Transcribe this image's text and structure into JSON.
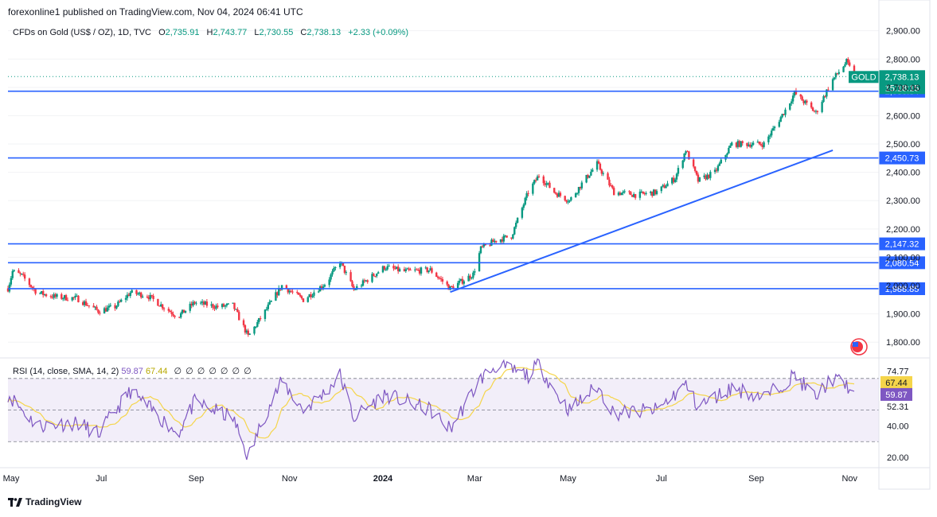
{
  "header": {
    "publisher": "forexonline1 published on TradingView.com, Nov 04, 2024 06:41 UTC"
  },
  "legend": {
    "symbol": "CFDs on Gold (US$ / OZ), 1D, TVC",
    "open_label": "O",
    "open": "2,735.91",
    "high_label": "H",
    "high": "2,743.77",
    "low_label": "L",
    "low": "2,730.55",
    "close_label": "C",
    "close": "2,738.13",
    "change": "+2.33 (+0.09%)"
  },
  "rsi_legend": {
    "label": "RSI (14, close, SMA, 14, 2)",
    "rsi": "59.87",
    "sma": "67.44",
    "na": [
      "∅",
      "∅",
      "∅",
      "∅",
      "∅",
      "∅",
      "∅"
    ]
  },
  "footer": {
    "brand": "TradingView"
  },
  "colors": {
    "up": "#089981",
    "down": "#f23645",
    "level": "#2962ff",
    "rsi": "#7e57c2",
    "rsi_ma": "#f5d54a"
  },
  "chart_data": {
    "type": "candlestick",
    "symbol": "GOLD",
    "interval": "1D",
    "price_axis": {
      "ticks": [
        "2,900.00",
        "2,800.00",
        "2,700.00",
        "2,600.00",
        "2,500.00",
        "2,400.00",
        "2,300.00",
        "2,200.00",
        "2,100.00",
        "2,000.00",
        "1,900.00",
        "1,800.00"
      ],
      "ylim": [
        1750,
        2930
      ]
    },
    "time_axis": {
      "labels": [
        "May",
        "Jul",
        "Sep",
        "Nov",
        "2024",
        "Mar",
        "May",
        "Jul",
        "Sep",
        "Nov"
      ]
    },
    "price_path": [
      [
        "2023-05-01",
        1990
      ],
      [
        "2023-05-04",
        2050
      ],
      [
        "2023-05-10",
        2035
      ],
      [
        "2023-05-20",
        1975
      ],
      [
        "2023-06-01",
        1960
      ],
      [
        "2023-06-15",
        1955
      ],
      [
        "2023-06-29",
        1910
      ],
      [
        "2023-07-10",
        1925
      ],
      [
        "2023-07-20",
        1975
      ],
      [
        "2023-07-31",
        1965
      ],
      [
        "2023-08-20",
        1890
      ],
      [
        "2023-08-31",
        1940
      ],
      [
        "2023-09-15",
        1925
      ],
      [
        "2023-09-25",
        1930
      ],
      [
        "2023-10-05",
        1820
      ],
      [
        "2023-10-15",
        1900
      ],
      [
        "2023-10-27",
        2000
      ],
      [
        "2023-11-10",
        1950
      ],
      [
        "2023-11-25",
        2010
      ],
      [
        "2023-12-04",
        2085
      ],
      [
        "2023-12-13",
        1985
      ],
      [
        "2024-01-02",
        2065
      ],
      [
        "2024-01-15",
        2050
      ],
      [
        "2024-02-01",
        2055
      ],
      [
        "2024-02-14",
        1990
      ],
      [
        "2024-02-29",
        2040
      ],
      [
        "2024-03-05",
        2130
      ],
      [
        "2024-03-15",
        2160
      ],
      [
        "2024-03-25",
        2175
      ],
      [
        "2024-04-05",
        2330
      ],
      [
        "2024-04-12",
        2390
      ],
      [
        "2024-04-22",
        2330
      ],
      [
        "2024-05-02",
        2300
      ],
      [
        "2024-05-10",
        2360
      ],
      [
        "2024-05-20",
        2430
      ],
      [
        "2024-05-31",
        2330
      ],
      [
        "2024-06-15",
        2320
      ],
      [
        "2024-06-28",
        2330
      ],
      [
        "2024-07-10",
        2380
      ],
      [
        "2024-07-17",
        2480
      ],
      [
        "2024-07-25",
        2370
      ],
      [
        "2024-08-05",
        2400
      ],
      [
        "2024-08-16",
        2500
      ],
      [
        "2024-09-06",
        2500
      ],
      [
        "2024-09-20",
        2620
      ],
      [
        "2024-09-26",
        2680
      ],
      [
        "2024-10-10",
        2610
      ],
      [
        "2024-10-20",
        2720
      ],
      [
        "2024-10-30",
        2790
      ],
      [
        "2024-11-04",
        2738.13
      ]
    ],
    "horizontal_levels": [
      {
        "price": 2686.34,
        "label": "2,686.34"
      },
      {
        "price": 2450.73,
        "label": "2,450.73"
      },
      {
        "price": 2147.32,
        "label": "2,147.32"
      },
      {
        "price": 2080.54,
        "label": "2,080.54"
      },
      {
        "price": 1988.85,
        "label": "1,988.85"
      }
    ],
    "trendline": {
      "start": [
        "2024-02-14",
        1977
      ],
      "end": [
        "2024-10-21",
        2478
      ]
    },
    "last_price": {
      "name": "GOLD",
      "value": "2,738.13",
      "countdown": "15:18:15"
    },
    "rsi": {
      "params": "RSI (14, close, SMA, 14, 2)",
      "ticks": [
        "74.77",
        "52.31",
        "40.00",
        "20.00"
      ],
      "bands": [
        70,
        30
      ],
      "ylim": [
        15,
        82
      ],
      "current": {
        "rsi": "59.87",
        "rsi_ma": "67.44"
      },
      "rsi_path": [
        [
          "2023-05-01",
          60
        ],
        [
          "2023-05-20",
          40
        ],
        [
          "2023-06-15",
          42
        ],
        [
          "2023-06-29",
          35
        ],
        [
          "2023-07-20",
          62
        ],
        [
          "2023-08-20",
          35
        ],
        [
          "2023-08-31",
          55
        ],
        [
          "2023-09-25",
          45
        ],
        [
          "2023-10-05",
          20
        ],
        [
          "2023-10-15",
          45
        ],
        [
          "2023-10-27",
          68
        ],
        [
          "2023-11-10",
          50
        ],
        [
          "2023-11-25",
          62
        ],
        [
          "2023-12-04",
          72
        ],
        [
          "2023-12-13",
          45
        ],
        [
          "2024-01-02",
          60
        ],
        [
          "2024-02-01",
          50
        ],
        [
          "2024-02-14",
          38
        ],
        [
          "2024-03-05",
          70
        ],
        [
          "2024-03-15",
          78
        ],
        [
          "2024-04-05",
          72
        ],
        [
          "2024-04-12",
          79
        ],
        [
          "2024-04-22",
          62
        ],
        [
          "2024-05-02",
          50
        ],
        [
          "2024-05-20",
          65
        ],
        [
          "2024-05-31",
          48
        ],
        [
          "2024-06-28",
          50
        ],
        [
          "2024-07-17",
          66
        ],
        [
          "2024-07-25",
          52
        ],
        [
          "2024-08-16",
          64
        ],
        [
          "2024-09-06",
          58
        ],
        [
          "2024-09-26",
          72
        ],
        [
          "2024-10-10",
          58
        ],
        [
          "2024-10-20",
          70
        ],
        [
          "2024-10-30",
          66
        ],
        [
          "2024-11-04",
          59.87
        ]
      ]
    }
  }
}
